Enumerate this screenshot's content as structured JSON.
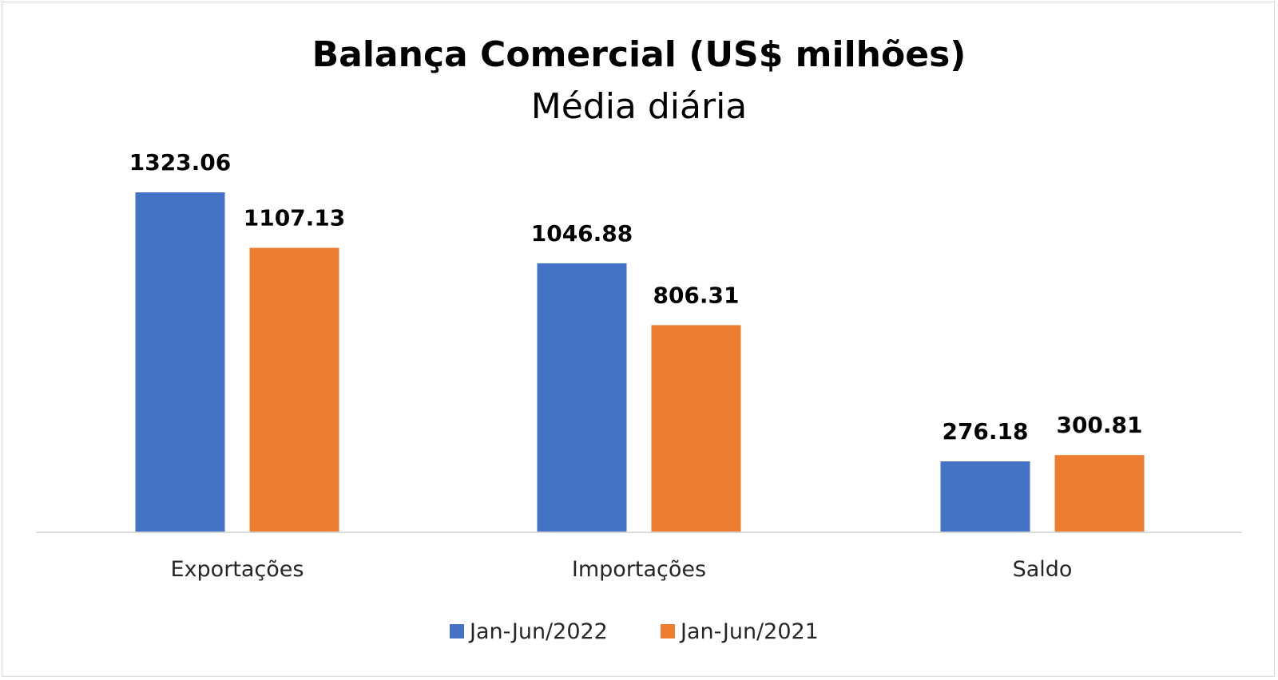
{
  "chart_data": {
    "type": "bar",
    "title": "Balança Comercial (US$ milhões)",
    "subtitle": "Média diária",
    "categories": [
      "Exportações",
      "Importações",
      "Saldo"
    ],
    "series": [
      {
        "name": "Jan-Jun/2022",
        "color": "#4472c4",
        "values": [
          1323.06,
          1046.88,
          276.18
        ]
      },
      {
        "name": "Jan-Jun/2021",
        "color": "#ed7d31",
        "values": [
          1107.13,
          806.31,
          300.81
        ]
      }
    ],
    "data_labels": [
      [
        "1323.06",
        "1046.88",
        "276.18"
      ],
      [
        "1107.13",
        "806.31",
        "300.81"
      ]
    ],
    "ylim": [
      0,
      1323.06
    ],
    "grid": false,
    "legend_position": "bottom"
  }
}
